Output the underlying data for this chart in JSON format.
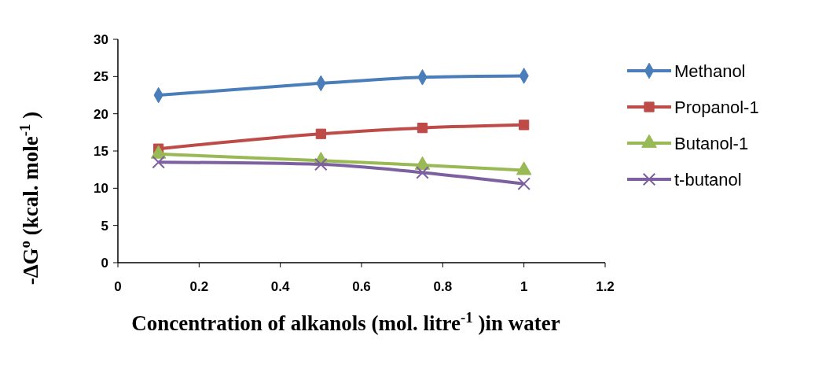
{
  "chart_data": {
    "type": "line",
    "xlabel": "Concentration of alkanols (mol. litre$^{-1}$ )in water",
    "ylabel": "-ΔG$^{o}$ (kcal. mole$^{-1}$ )",
    "x": [
      0.1,
      0.5,
      0.75,
      1
    ],
    "xlim": [
      0,
      1.2
    ],
    "xticks": [
      0,
      0.2,
      0.4,
      0.6,
      0.8,
      1,
      1.2
    ],
    "ylim": [
      0,
      30
    ],
    "yticks": [
      0,
      5,
      10,
      15,
      20,
      25,
      30
    ],
    "grid": false,
    "legend": "right",
    "series": [
      {
        "name": "Methanol",
        "color": "#4a7ebb",
        "marker": "diamond",
        "values": [
          22.5,
          24.1,
          24.9,
          25.1
        ]
      },
      {
        "name": "Propanol-1",
        "color": "#be4b48",
        "marker": "square",
        "values": [
          15.3,
          17.3,
          18.1,
          18.5
        ]
      },
      {
        "name": "Butanol-1",
        "color": "#98b954",
        "marker": "triangle",
        "values": [
          14.6,
          13.7,
          13.1,
          12.4
        ]
      },
      {
        "name": "t-butanol",
        "color": "#7d60a0",
        "marker": "cross",
        "values": [
          13.5,
          13.2,
          12.1,
          10.6
        ]
      }
    ]
  }
}
